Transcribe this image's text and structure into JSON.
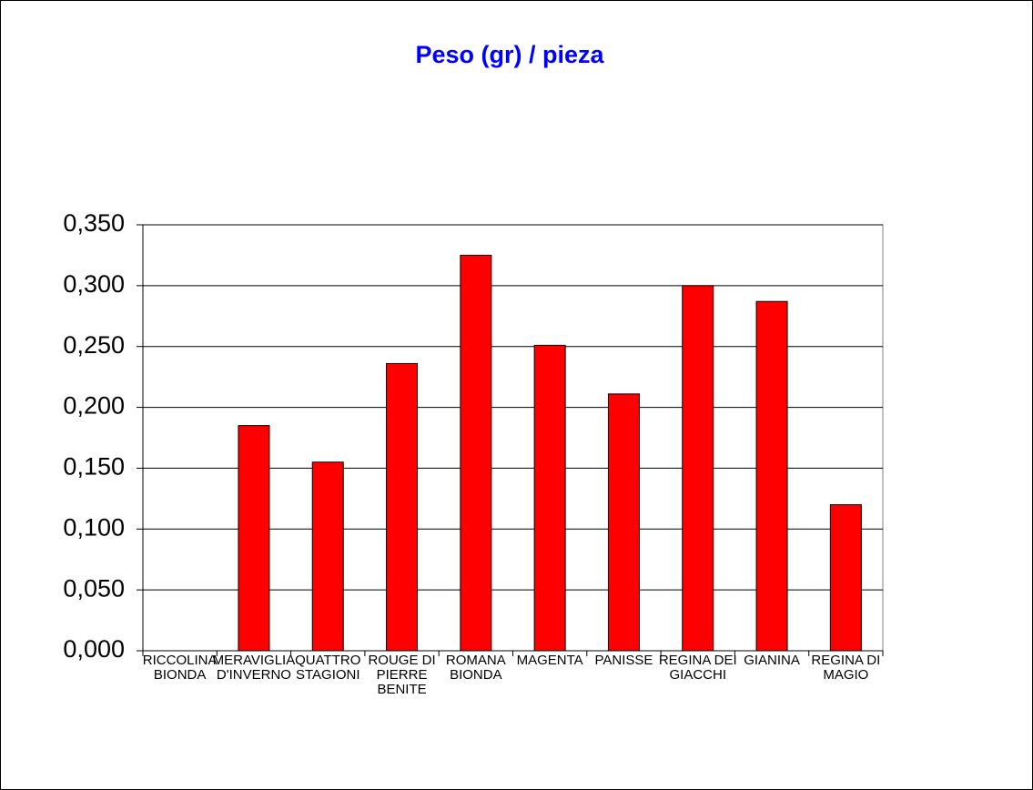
{
  "chart_data": {
    "type": "bar",
    "title": "Peso (gr) / pieza",
    "categories": [
      "RICCOLINA BIONDA",
      "MERAVIGLIA D'INVERNO",
      "QUATTRO STAGIONI",
      "ROUGE DI PIERRE BENITE",
      "ROMANA BIONDA",
      "MAGENTA",
      "PANISSE",
      "REGINA DEI GIACCHI",
      "GIANINA",
      "REGINA DI MAGIO"
    ],
    "values": [
      null,
      0.185,
      0.155,
      0.236,
      0.325,
      0.251,
      0.211,
      0.3,
      0.287,
      0.12
    ],
    "color": "#ff0000",
    "ylim": [
      0,
      0.35
    ],
    "yticks": [
      {
        "value": 0,
        "label": "0,000"
      },
      {
        "value": 0.05,
        "label": "0,050"
      },
      {
        "value": 0.1,
        "label": "0,100"
      },
      {
        "value": 0.15,
        "label": "0,150"
      },
      {
        "value": 0.2,
        "label": "0,200"
      },
      {
        "value": 0.25,
        "label": "0,250"
      },
      {
        "value": 0.3,
        "label": "0,300"
      },
      {
        "value": 0.35,
        "label": "0,350"
      }
    ],
    "grid": true
  }
}
